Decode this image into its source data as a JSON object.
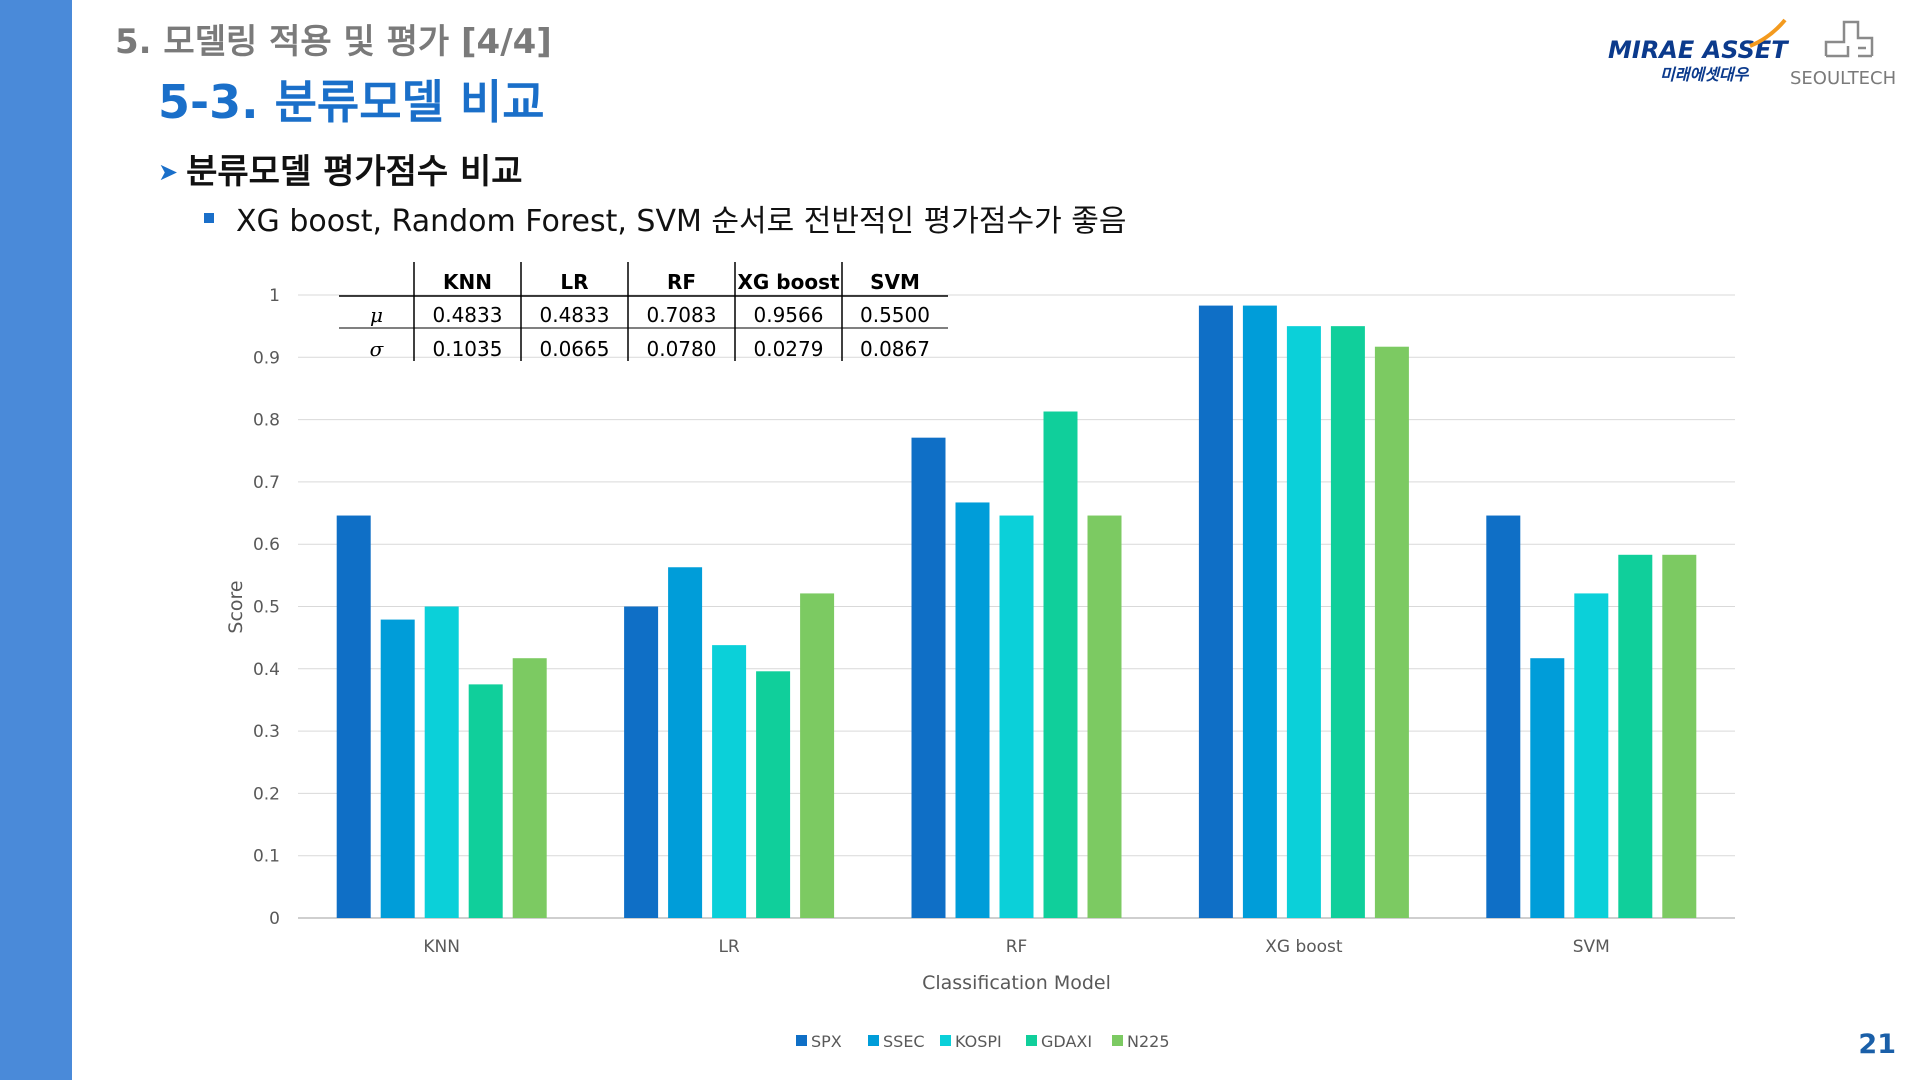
{
  "header": {
    "section_title": "5. 모델링 적용 및 평가 [4/4]",
    "slide_title": "5-3. 분류모델 비교",
    "logo_mirae_text": "MIRAE ASSET",
    "logo_mirae_sub": "미래에셋대우",
    "logo_seoul_text": "SEOULTECH"
  },
  "content": {
    "bullet_1": "분류모델 평가점수 비교",
    "bullet_2": "XG boost, Random Forest, SVM 순서로 전반적인 평가점수가 좋음"
  },
  "page_number": "21",
  "table": {
    "headers": [
      "KNN",
      "LR",
      "RF",
      "XG boost",
      "SVM"
    ],
    "rows": [
      {
        "symbol": "μ",
        "values": [
          "0.4833",
          "0.4833",
          "0.7083",
          "0.9566",
          "0.5500"
        ]
      },
      {
        "symbol": "σ",
        "values": [
          "0.1035",
          "0.0665",
          "0.0780",
          "0.0279",
          "0.0867"
        ]
      }
    ]
  },
  "chart_data": {
    "type": "bar",
    "categories": [
      "KNN",
      "LR",
      "RF",
      "XG boost",
      "SVM"
    ],
    "series": [
      {
        "name": "SPX",
        "color": "#0f6fc6",
        "values": [
          0.646,
          0.5,
          0.771,
          0.983,
          0.646
        ]
      },
      {
        "name": "SSEC",
        "color": "#009dd9",
        "values": [
          0.479,
          0.563,
          0.667,
          0.983,
          0.417
        ]
      },
      {
        "name": "KOSPI",
        "color": "#0bd0d9",
        "values": [
          0.5,
          0.438,
          0.646,
          0.95,
          0.521
        ]
      },
      {
        "name": "GDAXI",
        "color": "#10cf9b",
        "values": [
          0.375,
          0.396,
          0.813,
          0.95,
          0.583
        ]
      },
      {
        "name": "N225",
        "color": "#7cca62",
        "values": [
          0.417,
          0.521,
          0.646,
          0.917,
          0.583
        ]
      }
    ],
    "ylim": [
      0,
      1
    ],
    "yticks": [
      "0",
      "0.1",
      "0.2",
      "0.3",
      "0.4",
      "0.5",
      "0.6",
      "0.7",
      "0.8",
      "0.9",
      "1"
    ],
    "xlabel": "Classification Model",
    "ylabel": "Score",
    "grid": true,
    "legend_position": "bottom"
  }
}
